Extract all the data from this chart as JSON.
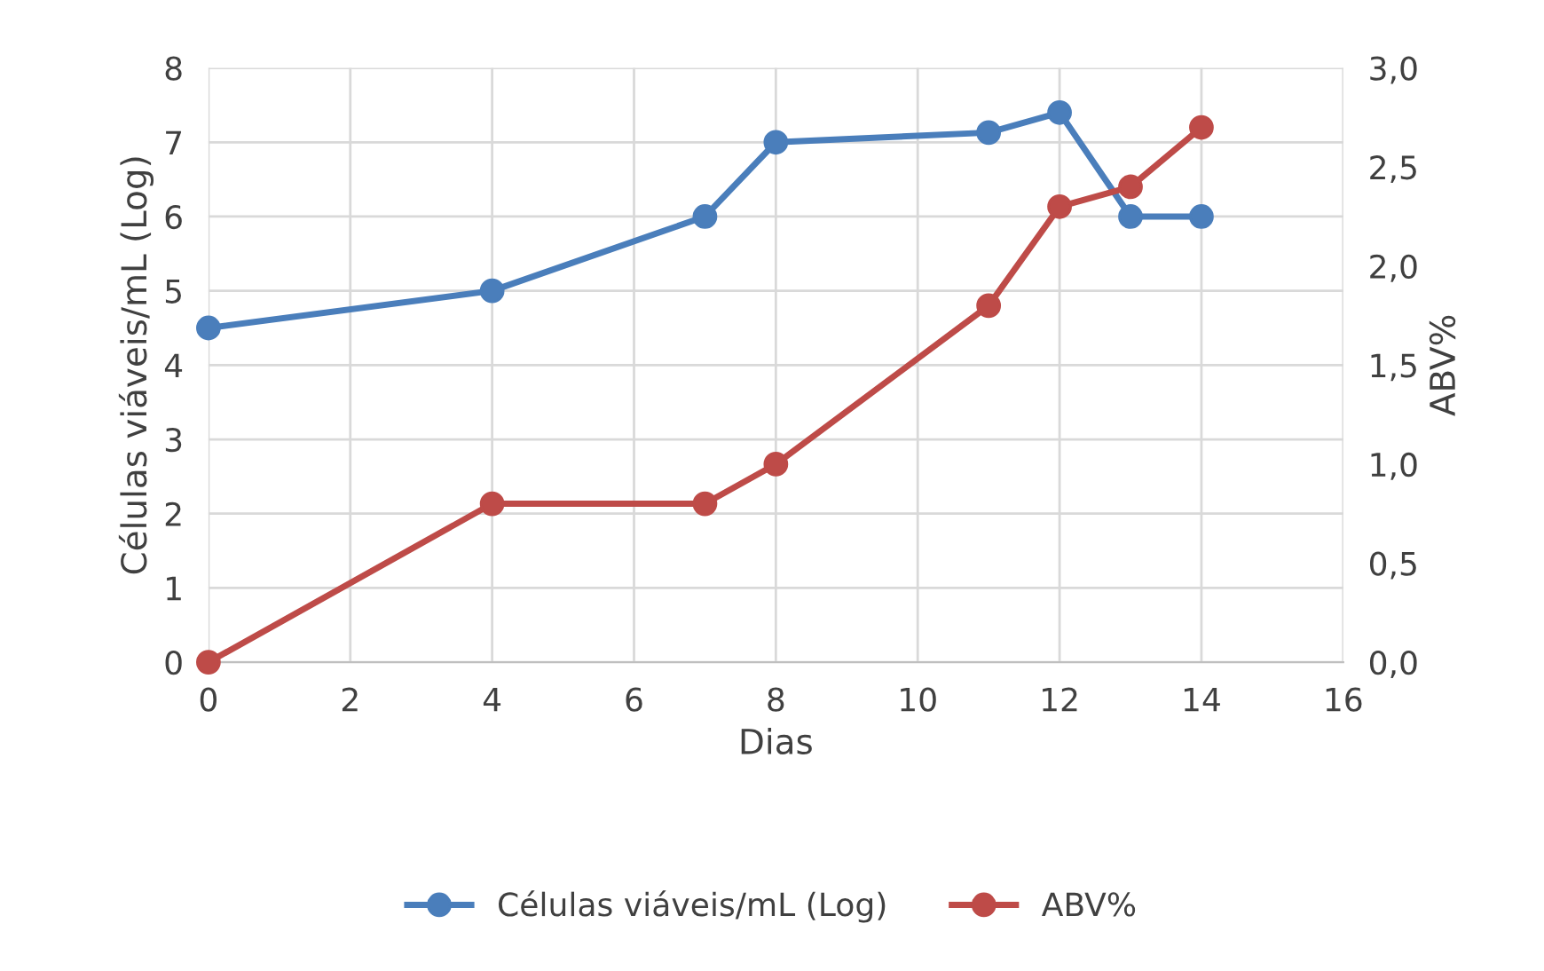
{
  "chart_data": {
    "type": "line",
    "xlabel": "Dias",
    "ylabel": "Células viáveis/mL (Log)",
    "y2label": "ABV%",
    "x": [
      0,
      4,
      7,
      8,
      11,
      12,
      13,
      14
    ],
    "series": [
      {
        "name": "Células viáveis/mL (Log)",
        "color": "#4a7ebb",
        "values": [
          4.5,
          5,
          6,
          7,
          7.13,
          7.4,
          6,
          6
        ]
      },
      {
        "name": "ABV%",
        "color": "#be4b48",
        "axis": "y2",
        "values": [
          0,
          0.8,
          0.8,
          1.0,
          1.8,
          2.3,
          2.4,
          2.7
        ]
      }
    ],
    "xlim": [
      0,
      16
    ],
    "xticks": [
      0,
      2,
      4,
      6,
      8,
      10,
      12,
      14,
      16
    ],
    "ylim": [
      0,
      8
    ],
    "yticks": [
      0,
      1,
      2,
      3,
      4,
      5,
      6,
      7,
      8
    ],
    "y2lim": [
      0,
      3
    ],
    "y2ticks": [
      {
        "value": 0,
        "label": "0,0"
      },
      {
        "value": 0.5,
        "label": "0,5"
      },
      {
        "value": 1,
        "label": "1,0"
      },
      {
        "value": 1.5,
        "label": "1,5"
      },
      {
        "value": 2,
        "label": "2,0"
      },
      {
        "value": 2.5,
        "label": "2,5"
      },
      {
        "value": 3,
        "label": "3,0"
      }
    ],
    "grid": true,
    "legend": "bottom",
    "marker": "circle",
    "line_style": "solid"
  }
}
